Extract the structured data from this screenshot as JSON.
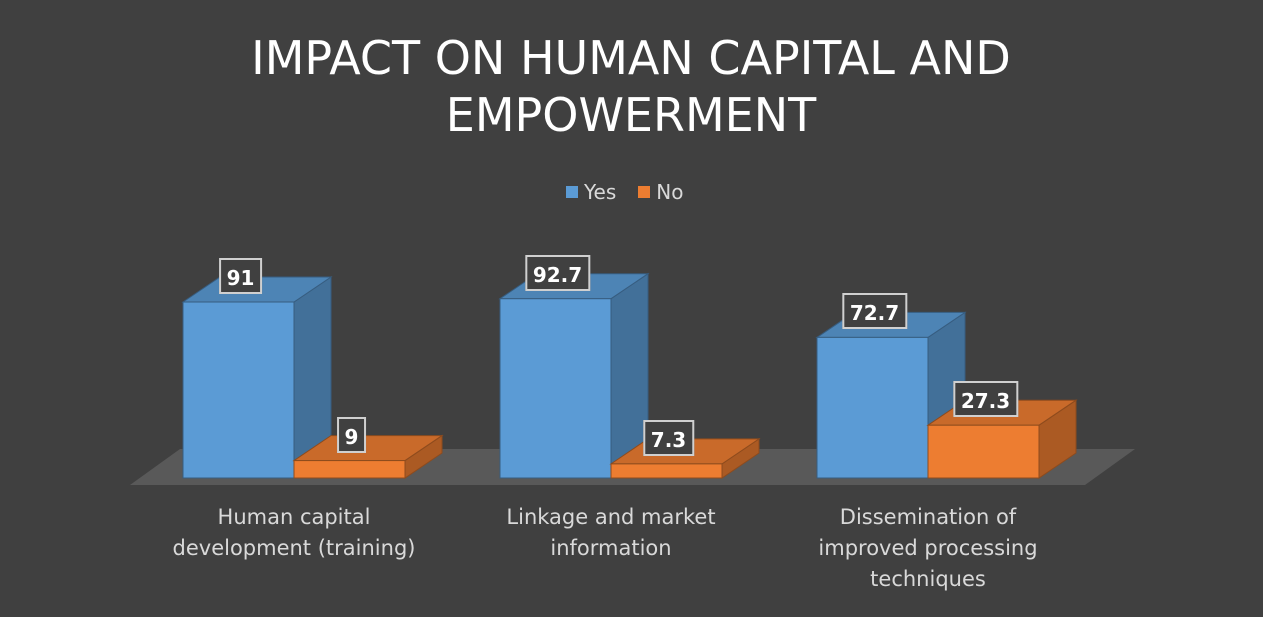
{
  "chart_data": {
    "type": "bar3d",
    "title": "IMPACT ON HUMAN CAPITAL AND EMPOWERMENT",
    "categories": [
      "Human capital development (training)",
      "Linkage and market information",
      "Dissemination of improved processing techniques"
    ],
    "series": [
      {
        "name": "Yes",
        "color": "#5b9bd5",
        "values": [
          91,
          92.7,
          72.7
        ]
      },
      {
        "name": "No",
        "color": "#ed7d31",
        "values": [
          9,
          7.3,
          27.3
        ]
      }
    ],
    "legend": "top"
  }
}
